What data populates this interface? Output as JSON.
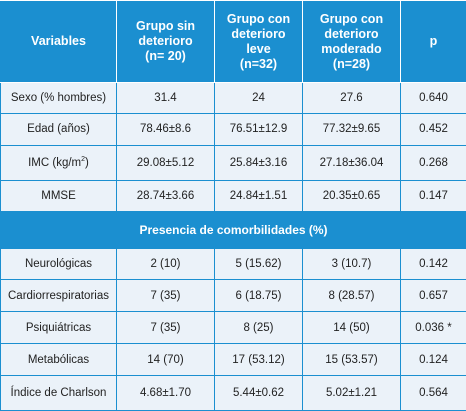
{
  "header": {
    "variables": "Variables",
    "grupo_sin": "Grupo sin\ndeterioro\n(n= 20)",
    "grupo_leve": "Grupo con\ndeterioro\nleve\n(n=32)",
    "grupo_moderado": "Grupo con\ndeterioro\nmoderado\n(n=28)",
    "p": "p"
  },
  "rows_top": [
    {
      "label": "Sexo (% hombres)",
      "sin": "31.4",
      "leve": "24",
      "mod": "27.6",
      "p": "0.640"
    },
    {
      "label": "Edad (años)",
      "sin": "78.46±8.6",
      "leve": "76.51±12.9",
      "mod": "77.32±9.65",
      "p": "0.452"
    },
    {
      "label_main": "IMC (kg/m",
      "label_sup": "2",
      "label_end": ")",
      "sin": "29.08±5.12",
      "leve": "25.84±3.16",
      "mod": "27.18±36.04",
      "p": "0.268"
    },
    {
      "label": "MMSE",
      "sin": "28.74±3.66",
      "leve": "24.84±1.51",
      "mod": "20.35±0.65",
      "p": "0.147"
    }
  ],
  "section": "Presencia de comorbilidades (%)",
  "rows_bottom": [
    {
      "label": "Neurológicas",
      "sin": "2 (10)",
      "leve": "5 (15.62)",
      "mod": "3 (10.7)",
      "p": "0.142"
    },
    {
      "label": "Cardiorrespiratorias",
      "sin": "7 (35)",
      "leve": "6 (18.75)",
      "mod": "8 (28.57)",
      "p": "0.657"
    },
    {
      "label": "Psiquiátricas",
      "sin": "7 (35)",
      "leve": "8 (25)",
      "mod": "14 (50)",
      "p": "0.036 *"
    },
    {
      "label": "Metabólicas",
      "sin": "14 (70)",
      "leve": "17 (53.12)",
      "mod": "15 (53.57)",
      "p": "0.124"
    },
    {
      "label": "Índice de Charlson",
      "sin": "4.68±1.70",
      "leve": "5.44±0.62",
      "mod": "5.02±1.21",
      "p": "0.564"
    }
  ]
}
